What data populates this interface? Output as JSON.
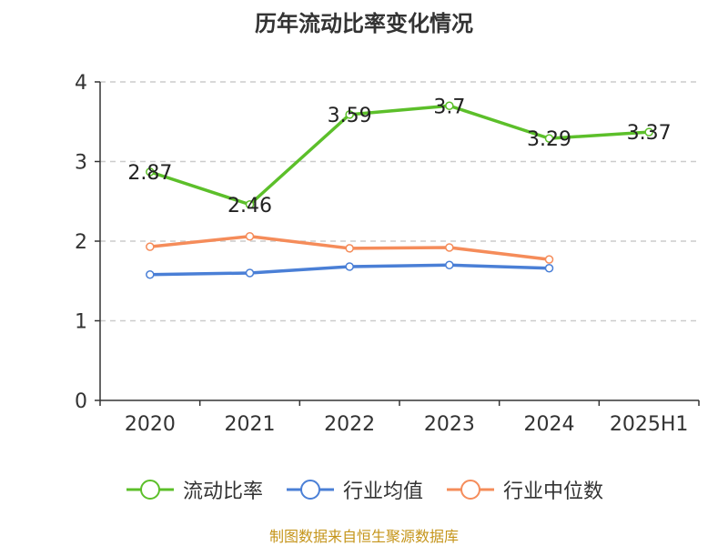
{
  "chart_data": {
    "type": "line",
    "title": "历年流动比率变化情况",
    "categories": [
      "2020",
      "2021",
      "2022",
      "2023",
      "2024",
      "2025H1"
    ],
    "ylim": [
      0,
      4
    ],
    "yticks": [
      0,
      1,
      2,
      3,
      4
    ],
    "grid": true,
    "legend_position": "bottom",
    "series": [
      {
        "name": "流动比率",
        "color": "#5cbf2a",
        "labeled": true,
        "values": [
          2.87,
          2.46,
          3.59,
          3.7,
          3.29,
          3.37
        ],
        "labels": [
          "2.87",
          "2.46",
          "3.59",
          "3.7",
          "3.29",
          "3.37"
        ]
      },
      {
        "name": "行业均值",
        "color": "#4a7fd6",
        "labeled": false,
        "values": [
          1.58,
          1.6,
          1.68,
          1.7,
          1.66,
          null
        ]
      },
      {
        "name": "行业中位数",
        "color": "#f58c5a",
        "labeled": false,
        "values": [
          1.93,
          2.06,
          1.91,
          1.92,
          1.77,
          null
        ]
      }
    ]
  },
  "source_note": "制图数据来自恒生聚源数据库"
}
